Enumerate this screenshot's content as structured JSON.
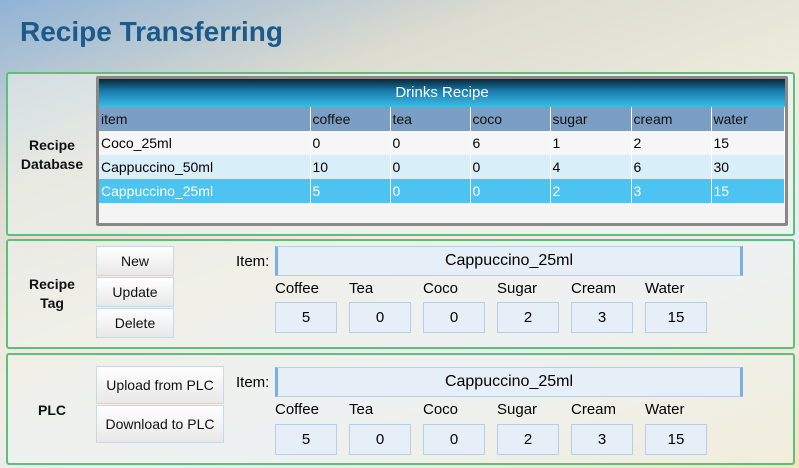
{
  "title": "Recipe Transferring",
  "database": {
    "label_line1": "Recipe",
    "label_line2": "Database",
    "grid_title": "Drinks Recipe",
    "columns": [
      "item",
      "coffee",
      "tea",
      "coco",
      "sugar",
      "cream",
      "water"
    ],
    "rows": [
      [
        "Coco_25ml",
        "0",
        "0",
        "6",
        "1",
        "2",
        "15"
      ],
      [
        "Cappuccino_50ml",
        "10",
        "0",
        "0",
        "4",
        "6",
        "30"
      ],
      [
        "Cappuccino_25ml",
        "5",
        "0",
        "0",
        "2",
        "3",
        "15"
      ]
    ],
    "selected_row": 2
  },
  "tag": {
    "label_line1": "Recipe",
    "label_line2": "Tag",
    "buttons": {
      "new": "New",
      "update": "Update",
      "delete": "Delete"
    },
    "item_label": "Item:",
    "item_value": "Cappuccino_25ml",
    "fields": [
      {
        "label": "Coffee",
        "value": "5"
      },
      {
        "label": "Tea",
        "value": "0"
      },
      {
        "label": "Coco",
        "value": "0"
      },
      {
        "label": "Sugar",
        "value": "2"
      },
      {
        "label": "Cream",
        "value": "3"
      },
      {
        "label": "Water",
        "value": "15"
      }
    ]
  },
  "plc": {
    "label": "PLC",
    "buttons": {
      "upload": "Upload from PLC",
      "download": "Download to PLC"
    },
    "item_label": "Item:",
    "item_value": "Cappuccino_25ml",
    "fields": [
      {
        "label": "Coffee",
        "value": "5"
      },
      {
        "label": "Tea",
        "value": "0"
      },
      {
        "label": "Coco",
        "value": "0"
      },
      {
        "label": "Sugar",
        "value": "2"
      },
      {
        "label": "Cream",
        "value": "3"
      },
      {
        "label": "Water",
        "value": "15"
      }
    ]
  }
}
